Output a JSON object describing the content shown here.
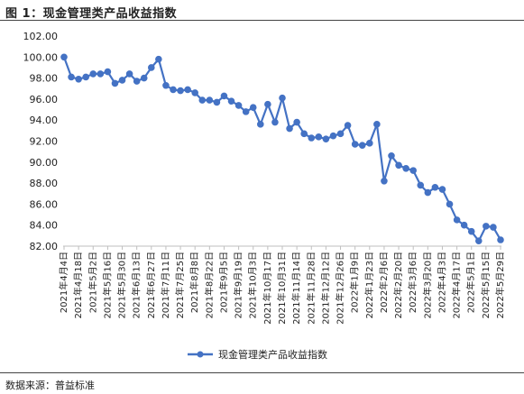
{
  "figure": {
    "title": "图 1：现金管理类产品收益指数",
    "source": "数据来源：普益标准"
  },
  "chart_data": {
    "type": "line",
    "title": "",
    "xlabel": "",
    "ylabel": "",
    "ylim": [
      82,
      102
    ],
    "y_ticks": [
      "82.00",
      "84.00",
      "86.00",
      "88.00",
      "90.00",
      "92.00",
      "94.00",
      "96.00",
      "98.00",
      "100.00",
      "102.00"
    ],
    "grid": false,
    "legend_position": "bottom",
    "series_color": "#4472C4",
    "x_tick_labels": [
      "2021年4月4日",
      "2021年4月18日",
      "2021年5月2日",
      "2021年5月16日",
      "2021年5月30日",
      "2021年6月13日",
      "2021年6月27日",
      "2021年7月11日",
      "2021年7月25日",
      "2021年8月8日",
      "2021年8月22日",
      "2021年9月5日",
      "2021年9月19日",
      "2021年10月3日",
      "2021年10月17日",
      "2021年10月31日",
      "2021年11月14日",
      "2021年11月28日",
      "2021年12月12日",
      "2021年12月26日",
      "2022年1月9日",
      "2022年1月23日",
      "2022年2月6日",
      "2022年2月20日",
      "2022年3月6日",
      "2022年3月20日",
      "2022年4月3日",
      "2022年4月17日",
      "2022年5月1日",
      "2022年5月15日",
      "2022年5月29日"
    ],
    "x": [
      "2021-04-04",
      "2021-04-11",
      "2021-04-18",
      "2021-04-25",
      "2021-05-02",
      "2021-05-09",
      "2021-05-16",
      "2021-05-23",
      "2021-05-30",
      "2021-06-06",
      "2021-06-13",
      "2021-06-20",
      "2021-06-27",
      "2021-07-04",
      "2021-07-11",
      "2021-07-18",
      "2021-07-25",
      "2021-08-01",
      "2021-08-08",
      "2021-08-15",
      "2021-08-22",
      "2021-08-29",
      "2021-09-05",
      "2021-09-12",
      "2021-09-19",
      "2021-09-26",
      "2021-10-03",
      "2021-10-10",
      "2021-10-17",
      "2021-10-24",
      "2021-10-31",
      "2021-11-07",
      "2021-11-14",
      "2021-11-21",
      "2021-11-28",
      "2021-12-05",
      "2021-12-12",
      "2021-12-19",
      "2021-12-26",
      "2022-01-02",
      "2022-01-09",
      "2022-01-16",
      "2022-01-23",
      "2022-01-30",
      "2022-02-06",
      "2022-02-13",
      "2022-02-20",
      "2022-02-27",
      "2022-03-06",
      "2022-03-13",
      "2022-03-20",
      "2022-03-27",
      "2022-04-03",
      "2022-04-10",
      "2022-04-17",
      "2022-04-24",
      "2022-05-01",
      "2022-05-08",
      "2022-05-15",
      "2022-05-22",
      "2022-05-29"
    ],
    "series": [
      {
        "name": "现金管理类产品收益指数",
        "values": [
          100.0,
          98.1,
          97.9,
          98.1,
          98.4,
          98.4,
          98.6,
          97.5,
          97.8,
          98.4,
          97.7,
          98.0,
          99.0,
          99.8,
          97.3,
          96.9,
          96.8,
          96.9,
          96.6,
          95.9,
          95.9,
          95.7,
          96.3,
          95.8,
          95.4,
          94.8,
          95.2,
          93.6,
          95.5,
          93.8,
          96.1,
          93.2,
          93.8,
          92.7,
          92.3,
          92.4,
          92.2,
          92.5,
          92.7,
          93.5,
          91.7,
          91.6,
          91.8,
          93.6,
          88.2,
          90.6,
          89.7,
          89.4,
          89.2,
          87.8,
          87.1,
          87.6,
          87.4,
          86.0,
          84.5,
          84.0,
          83.4,
          82.5,
          83.9,
          83.8,
          82.6
        ]
      }
    ]
  }
}
